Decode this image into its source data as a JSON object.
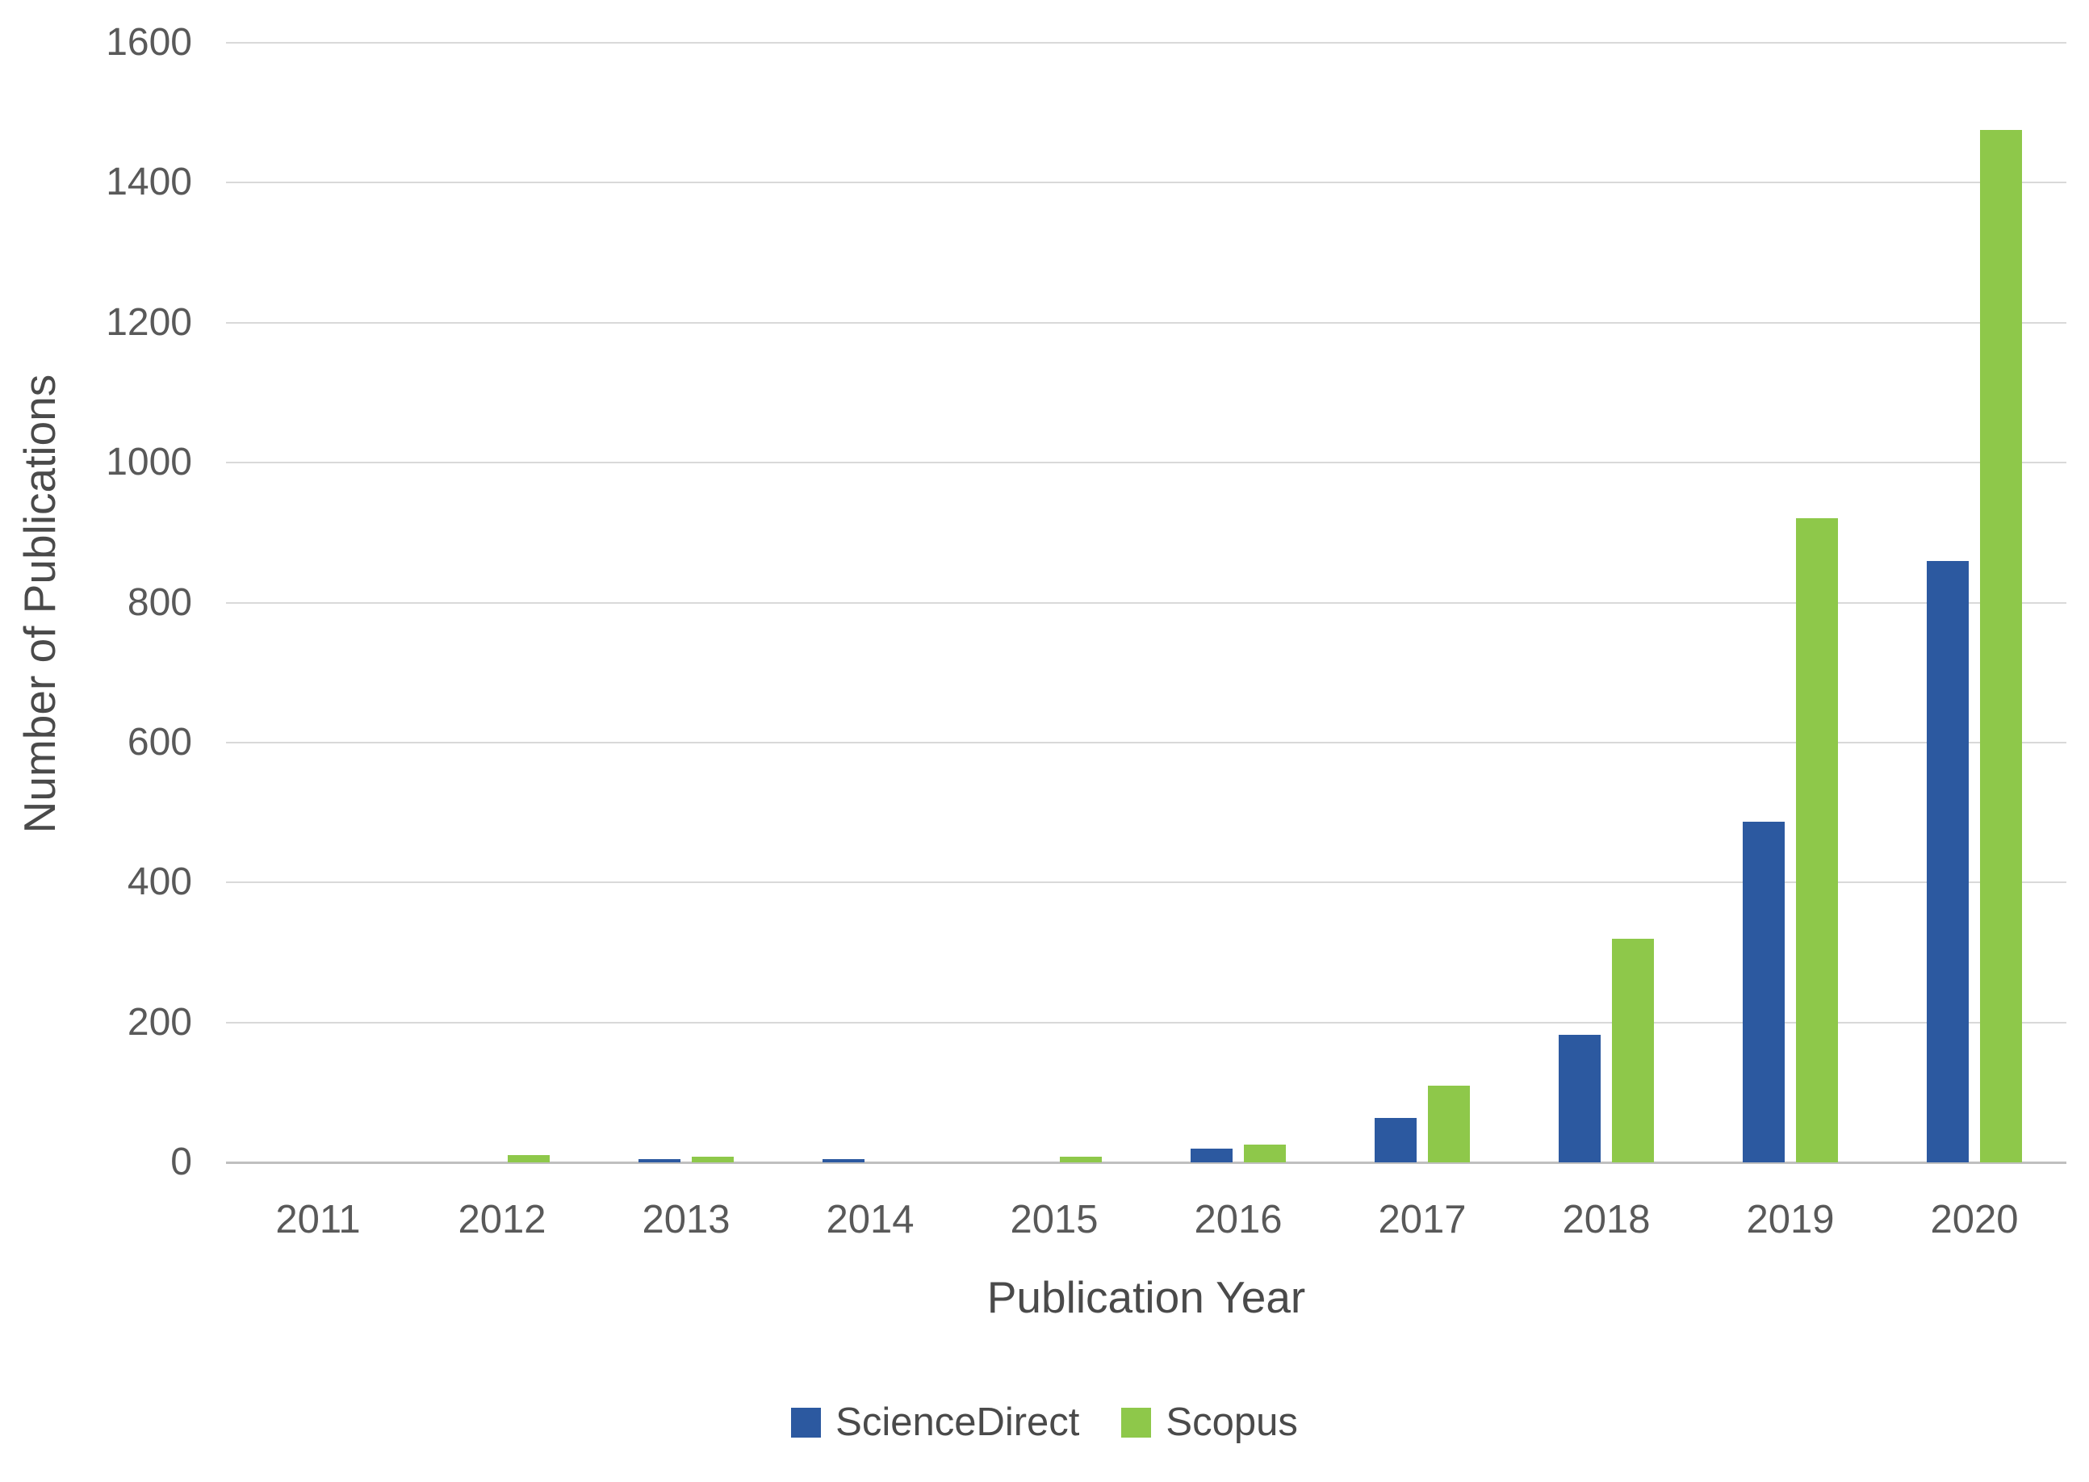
{
  "chart_data": {
    "type": "bar",
    "title": "",
    "categories": [
      "2011",
      "2012",
      "2013",
      "2014",
      "2015",
      "2016",
      "2017",
      "2018",
      "2019",
      "2020"
    ],
    "series": [
      {
        "name": "ScienceDirect",
        "color": "#2C59A0",
        "values": [
          0,
          0,
          5,
          5,
          0,
          20,
          63,
          182,
          487,
          860
        ]
      },
      {
        "name": "Scopus",
        "color": "#8EC84A",
        "values": [
          0,
          10,
          8,
          0,
          8,
          25,
          110,
          320,
          920,
          1475
        ]
      }
    ],
    "xlabel": "Publication Year",
    "ylabel": "Number of Publications",
    "ylim": [
      0,
      1600
    ],
    "ytick_step": 200,
    "y_tick_labels": [
      "0",
      "200",
      "400",
      "600",
      "800",
      "1000",
      "1200",
      "1400",
      "1600"
    ],
    "grid": true,
    "legend_position": "bottom",
    "colors": {
      "gridline": "#d9d9d9",
      "axis_line": "#bfbfbf",
      "tick_text": "#595959",
      "title_text": "#4a4a4a",
      "background": "#ffffff"
    }
  }
}
